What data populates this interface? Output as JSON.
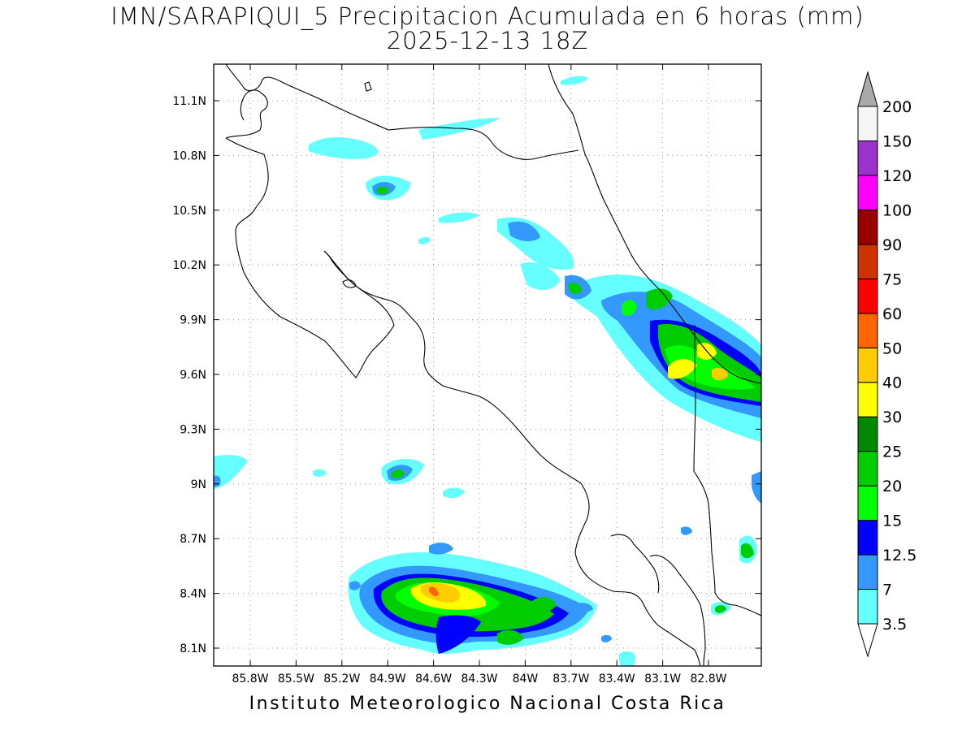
{
  "title_line1": "IMN/SARAPIQUI_5 Precipitacion Acumulada en 6 horas (mm)",
  "title_line2": "2025-12-13 18Z",
  "footer": "Instituto Meteorologico Nacional Costa Rica",
  "map": {
    "lon_ticks": [
      "85.8W",
      "85.5W",
      "85.2W",
      "84.9W",
      "84.6W",
      "84.3W",
      "84W",
      "83.7W",
      "83.4W",
      "83.1W",
      "82.8W"
    ],
    "lat_ticks": [
      "11.1N",
      "10.8N",
      "10.5N",
      "10.2N",
      "9.9N",
      "9.6N",
      "9.3N",
      "9N",
      "8.7N",
      "8.4N",
      "8.1N"
    ]
  },
  "colorbar": {
    "levels": [
      {
        "label": "3.5",
        "color": "#66ffff"
      },
      {
        "label": "7",
        "color": "#3399ff"
      },
      {
        "label": "12.5",
        "color": "#0000ff"
      },
      {
        "label": "15",
        "color": "#00ff00"
      },
      {
        "label": "20",
        "color": "#00cc00"
      },
      {
        "label": "25",
        "color": "#008800"
      },
      {
        "label": "30",
        "color": "#ffff00"
      },
      {
        "label": "40",
        "color": "#ffcc00"
      },
      {
        "label": "50",
        "color": "#ff6600"
      },
      {
        "label": "60",
        "color": "#ff0000"
      },
      {
        "label": "75",
        "color": "#cc3300"
      },
      {
        "label": "90",
        "color": "#990000"
      },
      {
        "label": "100",
        "color": "#ff00ff"
      },
      {
        "label": "120",
        "color": "#9933cc"
      },
      {
        "label": "150",
        "color": "#f5f5f5"
      },
      {
        "label": "200",
        "color": "#aaaaaa"
      }
    ]
  }
}
